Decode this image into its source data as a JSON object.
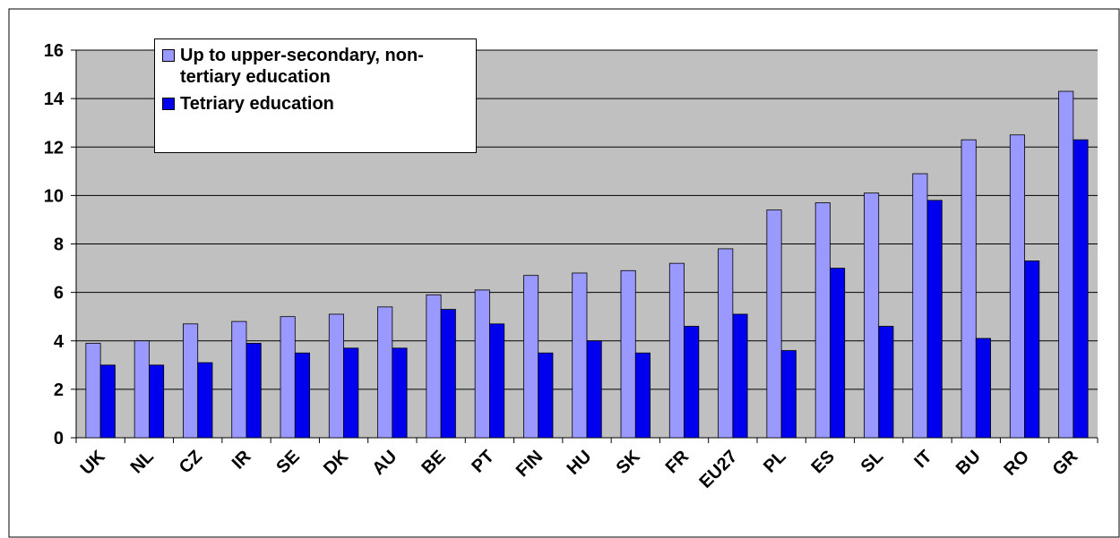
{
  "chart_data": {
    "type": "bar",
    "categories": [
      "UK",
      "NL",
      "CZ",
      "IR",
      "SE",
      "DK",
      "AU",
      "BE",
      "PT",
      "FIN",
      "HU",
      "SK",
      "FR",
      "EU27",
      "PL",
      "ES",
      "SL",
      "IT",
      "BU",
      "RO",
      "GR"
    ],
    "series": [
      {
        "name": "Up to upper-secondary, non-tertiary education",
        "color": "#9999ff",
        "values": [
          3.9,
          4.0,
          4.7,
          4.8,
          5.0,
          5.1,
          5.4,
          5.9,
          6.1,
          6.7,
          6.8,
          6.9,
          7.2,
          7.8,
          9.4,
          9.7,
          10.1,
          10.9,
          12.3,
          12.5,
          14.3
        ]
      },
      {
        "name": "Tetriary education",
        "color": "#0000ee",
        "values": [
          3.0,
          3.0,
          3.1,
          3.9,
          3.5,
          3.7,
          3.7,
          5.3,
          4.7,
          3.5,
          4.0,
          3.5,
          4.6,
          5.1,
          3.6,
          7.0,
          4.6,
          9.8,
          4.1,
          7.3,
          12.3
        ]
      }
    ],
    "ylim": [
      0,
      16
    ],
    "yticks": [
      0,
      2,
      4,
      6,
      8,
      10,
      12,
      14,
      16
    ],
    "grid": true
  }
}
